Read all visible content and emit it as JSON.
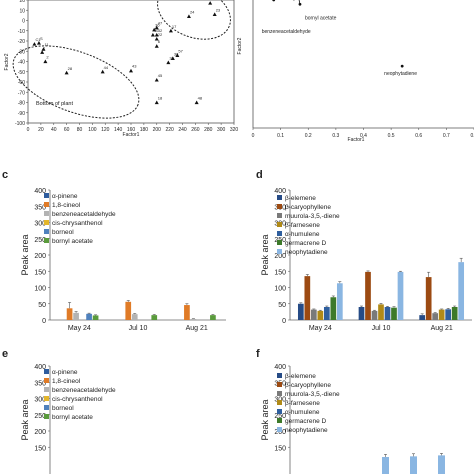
{
  "chart_data": [
    {
      "id": "a",
      "type": "scatter",
      "xlabel": "Factor1",
      "ylabel": "Factor2",
      "xlim": [
        0,
        320
      ],
      "ylim": [
        -100,
        20
      ],
      "xticks": [
        0,
        20,
        40,
        60,
        80,
        100,
        120,
        140,
        160,
        180,
        200,
        220,
        240,
        260,
        280,
        300,
        320
      ],
      "yticks": [
        -100,
        -90,
        -80,
        -70,
        -60,
        -50,
        -40,
        -30,
        -20,
        -10,
        0,
        10,
        20
      ],
      "points": [
        {
          "x": 10,
          "y": -23,
          "label": "C1"
        },
        {
          "x": 17,
          "y": -22,
          "label": "S"
        },
        {
          "x": 24,
          "y": -28,
          "label": "11"
        },
        {
          "x": 22,
          "y": -31,
          "label": "1"
        },
        {
          "x": 27,
          "y": -40,
          "label": "2"
        },
        {
          "x": 60,
          "y": -51,
          "label": "28"
        },
        {
          "x": 116,
          "y": -50,
          "label": "44"
        },
        {
          "x": 160,
          "y": -49,
          "label": "43"
        },
        {
          "x": 200,
          "y": -58,
          "label": "45"
        },
        {
          "x": 200,
          "y": -80,
          "label": "18"
        },
        {
          "x": 194,
          "y": -14,
          "label": "40"
        },
        {
          "x": 200,
          "y": -14,
          "label": "32"
        },
        {
          "x": 200,
          "y": -18,
          "label": "22"
        },
        {
          "x": 196,
          "y": -9,
          "label": "36"
        },
        {
          "x": 200,
          "y": -7,
          "label": "47"
        },
        {
          "x": 200,
          "y": -25,
          "label": "6"
        },
        {
          "x": 222,
          "y": -10,
          "label": "17"
        },
        {
          "x": 225,
          "y": -37,
          "label": "38"
        },
        {
          "x": 232,
          "y": -34,
          "label": "57"
        },
        {
          "x": 218,
          "y": -41,
          "label": "31"
        },
        {
          "x": 262,
          "y": -80,
          "label": "48"
        },
        {
          "x": 250,
          "y": 4,
          "label": "24"
        },
        {
          "x": 283,
          "y": 17,
          "label": "52"
        },
        {
          "x": 290,
          "y": 6,
          "label": "23"
        }
      ],
      "annotations": [
        "Bottom of plant"
      ]
    },
    {
      "id": "b",
      "type": "scatter",
      "xlabel": "Factor1",
      "ylabel": "Factor2",
      "xlim": [
        0,
        0.8
      ],
      "ylim": [
        -0.2,
        0.4
      ],
      "xticks": [
        "0",
        "0.1",
        "0.2",
        "0.3",
        "0.4",
        "0.5",
        "0.6",
        "0.7",
        "0.8"
      ],
      "points": [
        {
          "x": 0.075,
          "y": 0.4,
          "label": "benzeneacetaldehyde"
        },
        {
          "x": 0.148,
          "y": 0.405,
          "label": ""
        },
        {
          "x": 0.168,
          "y": 0.41,
          "label": ""
        },
        {
          "x": 0.17,
          "y": 0.38,
          "label": "bornyl acetate"
        },
        {
          "x": 0.54,
          "y": 0.09,
          "label": "neophytadiene"
        }
      ]
    },
    {
      "id": "c",
      "type": "bar",
      "ylabel": "Peak area",
      "ylim": [
        0,
        400
      ],
      "yticks": [
        0,
        50,
        100,
        150,
        200,
        250,
        300,
        350,
        400
      ],
      "categories": [
        "May 24",
        "Jul 10",
        "Aug 21"
      ],
      "series": [
        {
          "name": "α-pinene",
          "color": "#2e5c9e",
          "values": [
            0,
            0,
            0
          ],
          "err": [
            0,
            0,
            0
          ]
        },
        {
          "name": "1,8-cineol",
          "color": "#e07b27",
          "values": [
            36,
            56,
            46
          ],
          "err": [
            18,
            4,
            4
          ]
        },
        {
          "name": "benzeneacetaldehyde",
          "color": "#b3b3b3",
          "values": [
            22,
            18,
            3
          ],
          "err": [
            4,
            2,
            1
          ]
        },
        {
          "name": "cis-chrysanthenol",
          "color": "#e3b62b",
          "values": [
            0,
            0,
            0
          ],
          "err": [
            0,
            0,
            0
          ]
        },
        {
          "name": "borneol",
          "color": "#4f81bd",
          "values": [
            19,
            0,
            0
          ],
          "err": [
            2,
            0,
            0
          ]
        },
        {
          "name": "bornyl acetate",
          "color": "#5a9b3c",
          "values": [
            14,
            15,
            15
          ],
          "err": [
            2,
            2,
            2
          ]
        }
      ]
    },
    {
      "id": "d",
      "type": "bar",
      "ylabel": "Peak area",
      "ylim": [
        0,
        400
      ],
      "yticks": [
        0,
        50,
        100,
        150,
        200,
        250,
        300,
        350,
        400
      ],
      "categories": [
        "May 24",
        "Jul 10",
        "Aug 21"
      ],
      "series": [
        {
          "name": "β-elemene",
          "color": "#264b86",
          "values": [
            50,
            40,
            15
          ],
          "err": [
            3,
            3,
            4
          ]
        },
        {
          "name": "β-caryophyllene",
          "color": "#9c4a12",
          "values": [
            135,
            148,
            132
          ],
          "err": [
            5,
            3,
            15
          ]
        },
        {
          "name": "muurola-3,5,-diene",
          "color": "#7a7a7a",
          "values": [
            32,
            28,
            21
          ],
          "err": [
            2,
            2,
            2
          ]
        },
        {
          "name": "β-farnesene",
          "color": "#b08a17",
          "values": [
            28,
            48,
            32
          ],
          "err": [
            2,
            3,
            2
          ]
        },
        {
          "name": "α-humulene",
          "color": "#2f5f9e",
          "values": [
            40,
            40,
            33
          ],
          "err": [
            3,
            2,
            3
          ]
        },
        {
          "name": "germacrene D",
          "color": "#3d7a2a",
          "values": [
            70,
            38,
            40
          ],
          "err": [
            4,
            3,
            3
          ]
        },
        {
          "name": "neophytadiene",
          "color": "#8ab6e2",
          "values": [
            113,
            148,
            178
          ],
          "err": [
            5,
            2,
            12
          ]
        }
      ]
    },
    {
      "id": "e",
      "type": "bar",
      "ylabel": "Peak area",
      "ylim": [
        0,
        400
      ],
      "yticks": [
        150,
        200,
        250,
        300,
        350,
        400
      ],
      "categories": [],
      "series": [
        {
          "name": "α-pinene",
          "color": "#2e5c9e",
          "values": []
        },
        {
          "name": "1,8-cineol",
          "color": "#e07b27",
          "values": []
        },
        {
          "name": "benzeneacetaldehyde",
          "color": "#b3b3b3",
          "values": []
        },
        {
          "name": "cis-chrysanthenol",
          "color": "#e3b62b",
          "values": []
        },
        {
          "name": "borneol",
          "color": "#4f81bd",
          "values": []
        },
        {
          "name": "bornyl acetate",
          "color": "#5a9b3c",
          "values": []
        }
      ]
    },
    {
      "id": "f",
      "type": "bar",
      "ylabel": "Peak area",
      "ylim": [
        0,
        400
      ],
      "yticks": [
        150,
        200,
        250,
        300,
        350,
        400
      ],
      "categories": [],
      "visible_bars": [
        {
          "color": "#8ab6e2",
          "value": 120,
          "err": 8
        },
        {
          "color": "#8ab6e2",
          "value": 122,
          "err": 8
        },
        {
          "color": "#8ab6e2",
          "value": 125,
          "err": 6
        }
      ],
      "series": [
        {
          "name": "β-elemene",
          "color": "#264b86",
          "values": []
        },
        {
          "name": "β-caryophyllene",
          "color": "#9c4a12",
          "values": []
        },
        {
          "name": "muurola-3,5,-diene",
          "color": "#7a7a7a",
          "values": []
        },
        {
          "name": "β-farnesene",
          "color": "#b08a17",
          "values": []
        },
        {
          "name": "α-humulene",
          "color": "#2f5f9e",
          "values": []
        },
        {
          "name": "germacrene D",
          "color": "#3d7a2a",
          "values": []
        },
        {
          "name": "neophytadiene",
          "color": "#8ab6e2",
          "values": []
        }
      ]
    }
  ]
}
